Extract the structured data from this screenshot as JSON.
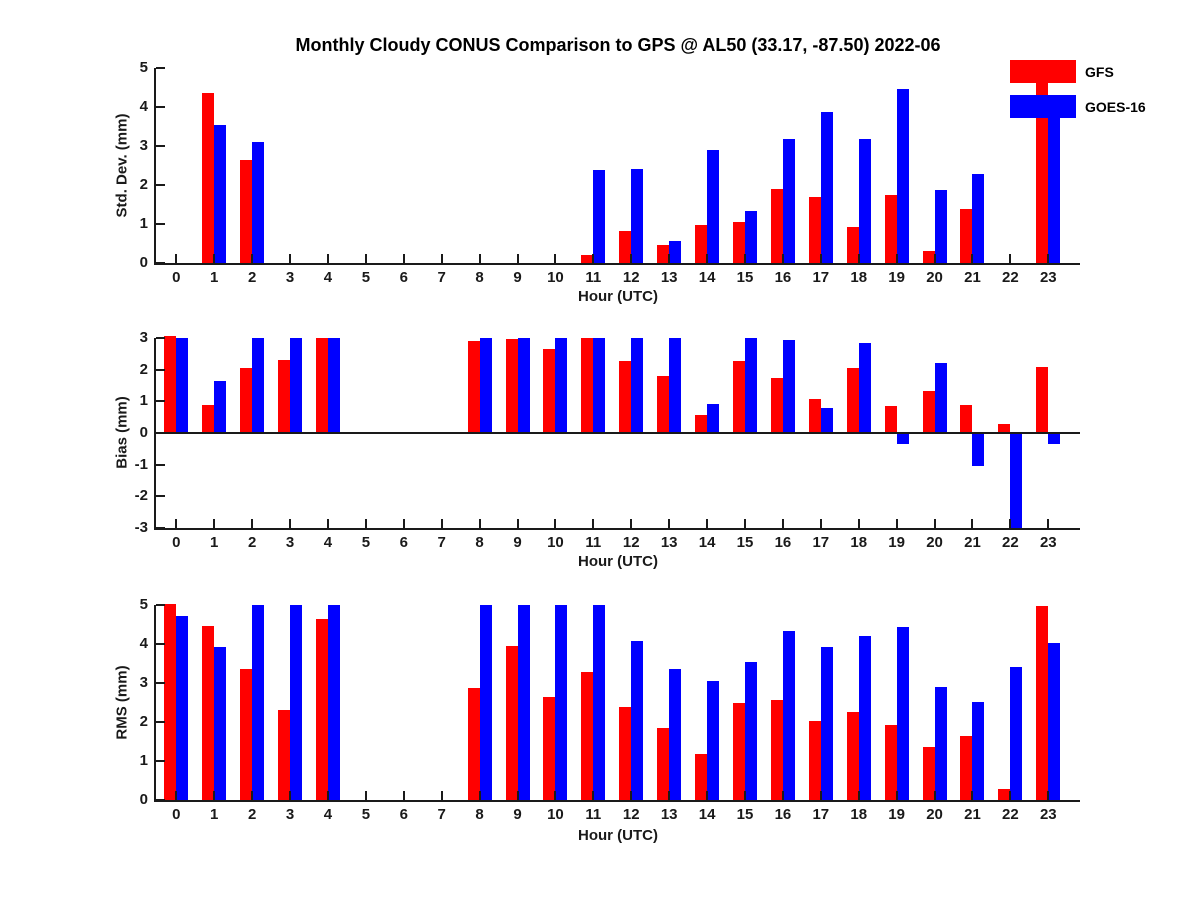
{
  "title": "Monthly Cloudy CONUS Comparison to GPS @ AL50 (33.17, -87.50) 2022-06",
  "colors": {
    "gfs": "#ff0000",
    "goes16": "#0000ff",
    "axis": "#1a1a1a"
  },
  "legend": [
    {
      "label": "GFS",
      "color": "#ff0000"
    },
    {
      "label": "GOES-16",
      "color": "#0000ff"
    }
  ],
  "chart_data": [
    {
      "type": "bar",
      "title": "Monthly Cloudy CONUS Comparison to GPS @ AL50 (33.17, -87.50) 2022-06",
      "ylabel": "Std. Dev. (mm)",
      "xlabel": "Hour (UTC)",
      "ylim": [
        0,
        5
      ],
      "yticks": [
        0,
        1,
        2,
        3,
        4,
        5
      ],
      "x": [
        0,
        1,
        2,
        3,
        4,
        5,
        6,
        7,
        8,
        9,
        10,
        11,
        12,
        13,
        14,
        15,
        16,
        17,
        18,
        19,
        20,
        21,
        22,
        23
      ],
      "grid": false,
      "legend_position": "top-right",
      "series": [
        {
          "name": "GFS",
          "color": "#ff0000",
          "values": [
            null,
            4.35,
            2.63,
            null,
            null,
            null,
            null,
            null,
            null,
            null,
            null,
            0.2,
            0.83,
            0.45,
            0.97,
            1.05,
            1.9,
            1.68,
            0.92,
            1.74,
            0.3,
            1.38,
            null,
            5.15
          ]
        },
        {
          "name": "GOES-16",
          "color": "#0000ff",
          "values": [
            null,
            3.55,
            3.09,
            null,
            null,
            null,
            null,
            null,
            null,
            null,
            null,
            2.38,
            2.4,
            0.57,
            2.91,
            1.34,
            3.17,
            3.86,
            3.17,
            4.45,
            1.88,
            2.28,
            null,
            4.3
          ]
        }
      ]
    },
    {
      "type": "bar",
      "ylabel": "Bias (mm)",
      "xlabel": "Hour (UTC)",
      "ylim": [
        -3,
        3
      ],
      "yticks": [
        3,
        2,
        1,
        0,
        -1,
        -2,
        -3
      ],
      "x": [
        0,
        1,
        2,
        3,
        4,
        5,
        6,
        7,
        8,
        9,
        10,
        11,
        12,
        13,
        14,
        15,
        16,
        17,
        18,
        19,
        20,
        21,
        22,
        23
      ],
      "grid": false,
      "series": [
        {
          "name": "GFS",
          "color": "#ff0000",
          "values": [
            3.05,
            0.89,
            2.04,
            2.32,
            3.0,
            null,
            null,
            null,
            2.9,
            2.98,
            2.64,
            3.0,
            2.27,
            1.8,
            0.58,
            2.27,
            1.73,
            1.08,
            2.06,
            0.84,
            1.33,
            0.88,
            0.28,
            2.08
          ]
        },
        {
          "name": "GOES-16",
          "color": "#0000ff",
          "values": [
            3.0,
            1.64,
            3.0,
            3.0,
            3.0,
            null,
            null,
            null,
            3.0,
            3.0,
            3.0,
            3.0,
            3.0,
            3.0,
            0.93,
            3.0,
            2.95,
            0.8,
            2.83,
            -0.34,
            2.2,
            -1.04,
            -3.0,
            -0.34
          ]
        }
      ]
    },
    {
      "type": "bar",
      "ylabel": "RMS (mm)",
      "xlabel": "Hour (UTC)",
      "ylim": [
        0,
        5
      ],
      "yticks": [
        0,
        1,
        2,
        3,
        4,
        5
      ],
      "x": [
        0,
        1,
        2,
        3,
        4,
        5,
        6,
        7,
        8,
        9,
        10,
        11,
        12,
        13,
        14,
        15,
        16,
        17,
        18,
        19,
        20,
        21,
        22,
        23
      ],
      "grid": false,
      "series": [
        {
          "name": "GFS",
          "color": "#ff0000",
          "values": [
            5.03,
            4.45,
            3.35,
            2.32,
            4.65,
            null,
            null,
            null,
            2.88,
            3.95,
            2.65,
            3.28,
            2.38,
            1.85,
            1.18,
            2.49,
            2.56,
            2.03,
            2.25,
            1.92,
            1.37,
            1.65,
            0.28,
            4.98
          ]
        },
        {
          "name": "GOES-16",
          "color": "#0000ff",
          "values": [
            4.72,
            3.93,
            5.0,
            5.0,
            5.0,
            null,
            null,
            null,
            5.0,
            5.0,
            5.0,
            5.0,
            4.07,
            3.36,
            3.06,
            3.55,
            4.33,
            3.93,
            4.21,
            4.43,
            2.91,
            2.51,
            3.4,
            4.03
          ]
        }
      ]
    }
  ]
}
